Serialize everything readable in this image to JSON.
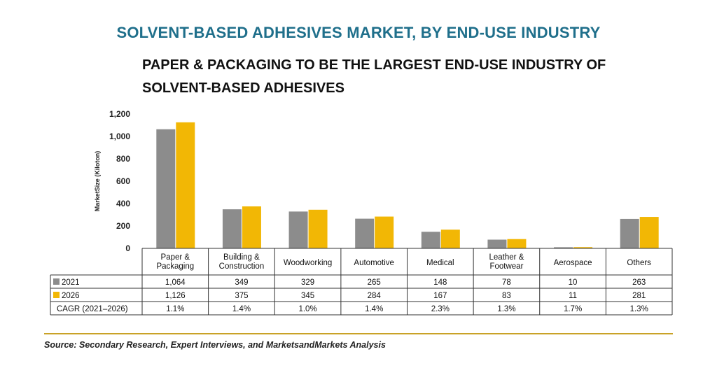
{
  "title": "SOLVENT-BASED ADHESIVES MARKET, BY END-USE INDUSTRY",
  "subtitle": "PAPER & PACKAGING TO BE THE LARGEST END-USE INDUSTRY OF SOLVENT-BASED ADHESIVES",
  "source": "Source: Secondary Research, Expert Interviews, and MarketsandMarkets Analysis",
  "colors": {
    "s2021": "#8c8c8c",
    "s2026": "#f2b705",
    "title": "#1f6f8b",
    "rule": "#c9a227"
  },
  "chart_data": {
    "type": "bar",
    "ylabel": "MarketSize (Kiloton)",
    "ylim": [
      0,
      1200
    ],
    "yticks": [
      "0",
      "200",
      "400",
      "600",
      "800",
      "1,000",
      "1,200"
    ],
    "yticks_values": [
      0,
      200,
      400,
      600,
      800,
      1000,
      1200
    ],
    "categories": [
      [
        "Paper &",
        "Packaging"
      ],
      [
        "Building &",
        "Construction"
      ],
      [
        "Woodworking"
      ],
      [
        "Automotive"
      ],
      [
        "Medical"
      ],
      [
        "Leather &",
        "Footwear"
      ],
      [
        "Aerospace"
      ],
      [
        "Others"
      ]
    ],
    "series": [
      {
        "name": "2021",
        "values": [
          1064,
          349,
          329,
          265,
          148,
          78,
          10,
          263
        ],
        "labels": [
          "1,064",
          "349",
          "329",
          "265",
          "148",
          "78",
          "10",
          "263"
        ]
      },
      {
        "name": "2026",
        "values": [
          1126,
          375,
          345,
          284,
          167,
          83,
          11,
          281
        ],
        "labels": [
          "1,126",
          "375",
          "345",
          "284",
          "167",
          "83",
          "11",
          "281"
        ]
      }
    ],
    "cagr_label": "CAGR (2021–2026)",
    "cagr": [
      "1.1%",
      "1.4%",
      "1.0%",
      "1.4%",
      "2.3%",
      "1.3%",
      "1.7%",
      "1.3%"
    ],
    "legend": "table-left",
    "grid": false
  }
}
